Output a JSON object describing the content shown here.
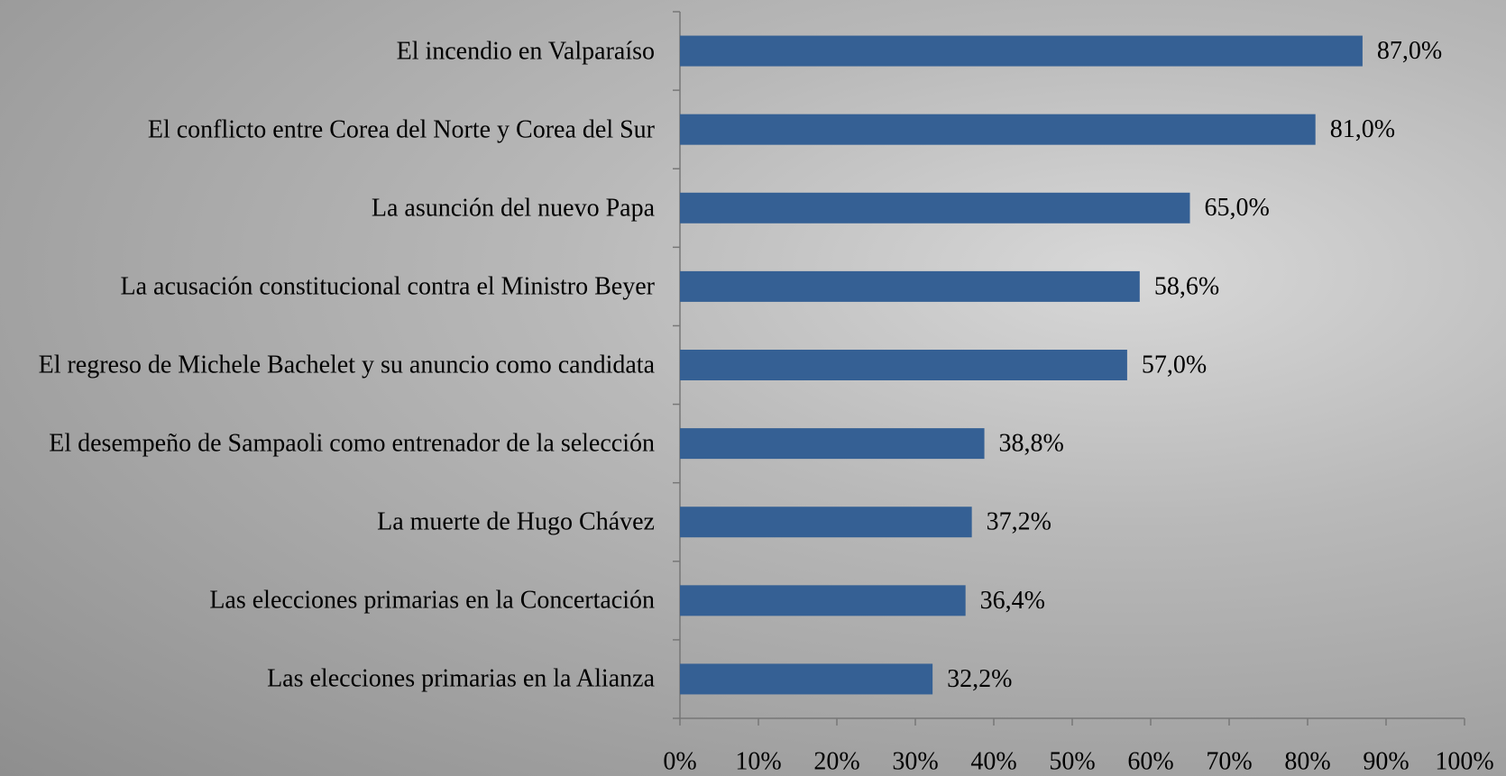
{
  "chart_data": {
    "type": "bar",
    "orientation": "horizontal",
    "categories": [
      "El incendio en Valparaíso",
      "El conflicto entre Corea del Norte y Corea del Sur",
      "La asunción del nuevo Papa",
      "La acusación constitucional contra el Ministro Beyer",
      "El regreso de Michele Bachelet y su anuncio como candidata",
      "El desempeño de Sampaoli como entrenador de la selección",
      "La muerte de Hugo Chávez",
      "Las elecciones primarias en la Concertación",
      "Las elecciones primarias en la Alianza"
    ],
    "values": [
      87.0,
      81.0,
      65.0,
      58.6,
      57.0,
      38.8,
      37.2,
      36.4,
      32.2
    ],
    "value_labels": [
      "87,0%",
      "81,0%",
      "65,0%",
      "58,6%",
      "57,0%",
      "38,8%",
      "37,2%",
      "36,4%",
      "32,2%"
    ],
    "color": "#356094",
    "xlim": [
      0,
      100
    ],
    "xticks": [
      {
        "value": 0,
        "label": "0%"
      },
      {
        "value": 10,
        "label": "10%"
      },
      {
        "value": 20,
        "label": "20%"
      },
      {
        "value": 30,
        "label": "30%"
      },
      {
        "value": 40,
        "label": "40%"
      },
      {
        "value": 50,
        "label": "50%"
      },
      {
        "value": 60,
        "label": "60%"
      },
      {
        "value": 70,
        "label": "70%"
      },
      {
        "value": 80,
        "label": "80%"
      },
      {
        "value": 90,
        "label": "90%"
      },
      {
        "value": 100,
        "label": "100%"
      }
    ],
    "grid": false
  }
}
